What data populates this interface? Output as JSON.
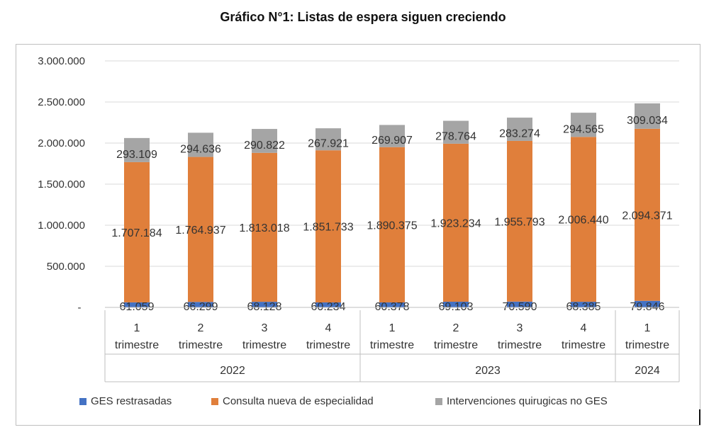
{
  "chart_data": {
    "type": "bar",
    "stacked": true,
    "title": "Gráfico N°1: Listas de espera siguen creciendo",
    "y_ticks": [
      "-",
      "500.000",
      "1.000.000",
      "1.500.000",
      "2.000.000",
      "2.500.000",
      "3.000.000"
    ],
    "ylim": [
      0,
      3000000
    ],
    "grid": true,
    "legend_position": "bottom",
    "categories": [
      {
        "quarter": "1",
        "period": "trimestre",
        "year": "2022"
      },
      {
        "quarter": "2",
        "period": "trimestre",
        "year": "2022"
      },
      {
        "quarter": "3",
        "period": "trimestre",
        "year": "2022"
      },
      {
        "quarter": "4",
        "period": "trimestre",
        "year": "2022"
      },
      {
        "quarter": "1",
        "period": "trimestre",
        "year": "2023"
      },
      {
        "quarter": "2",
        "period": "trimestre",
        "year": "2023"
      },
      {
        "quarter": "3",
        "period": "trimestre",
        "year": "2023"
      },
      {
        "quarter": "4",
        "period": "trimestre",
        "year": "2023"
      },
      {
        "quarter": "1",
        "period": "trimestre",
        "year": "2024"
      }
    ],
    "year_groups": [
      {
        "label": "2022",
        "count": 4
      },
      {
        "label": "2023",
        "count": 4
      },
      {
        "label": "2024",
        "count": 1
      }
    ],
    "series": [
      {
        "name": "GES restrasadas",
        "color": "#4472C4",
        "values": [
          61059,
          66299,
          68128,
          60234,
          60378,
          69103,
          70590,
          68385,
          79846
        ],
        "labels": [
          "61.059",
          "66.299",
          "68.128",
          "60.234",
          "60.378",
          "69.103",
          "70.590",
          "68.385",
          "79.846"
        ]
      },
      {
        "name": "Consulta nueva de especialidad",
        "color": "#E07F3B",
        "values": [
          1707184,
          1764937,
          1813018,
          1851733,
          1890375,
          1923234,
          1955793,
          2006440,
          2094371
        ],
        "labels": [
          "1.707.184",
          "1.764.937",
          "1.813.018",
          "1.851.733",
          "1.890.375",
          "1.923.234",
          "1.955.793",
          "2.006.440",
          "2.094.371"
        ]
      },
      {
        "name": "Intervenciones quirugicas no GES",
        "color": "#A5A5A5",
        "values": [
          293109,
          294636,
          290822,
          267921,
          269907,
          278764,
          283274,
          294565,
          309034
        ],
        "labels": [
          "293.109",
          "294.636",
          "290.822",
          "267.921",
          "269.907",
          "278.764",
          "283.274",
          "294.565",
          "309.034"
        ]
      }
    ]
  }
}
